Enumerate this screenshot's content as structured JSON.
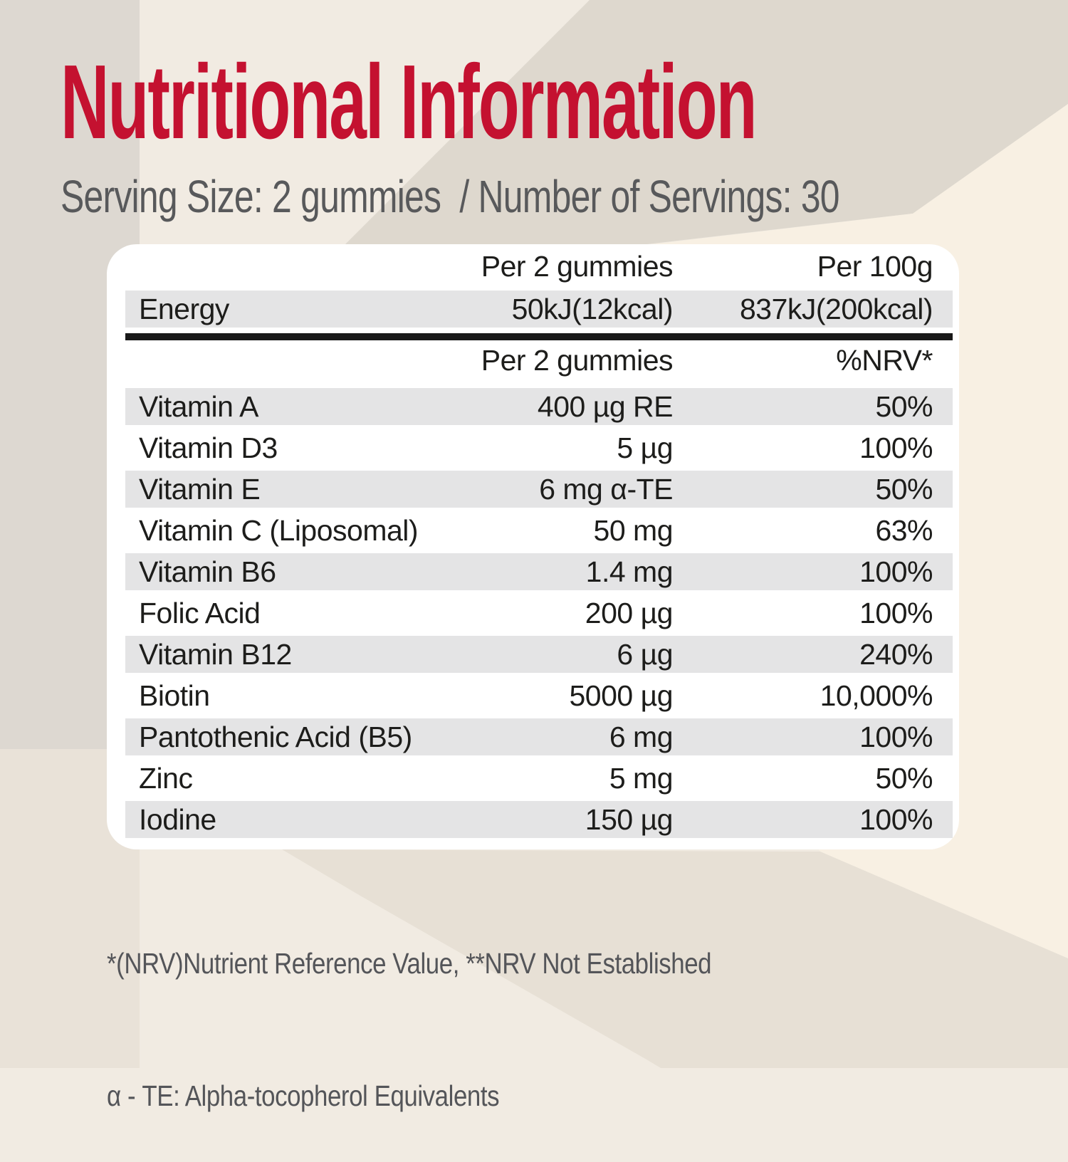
{
  "title": "Nutritional Information",
  "subtitle": "Serving Size: 2 gummies  / Number of Servings: 30",
  "table": {
    "energy_header": {
      "col2": "Per 2 gummies",
      "col3": "Per 100g"
    },
    "energy_row": {
      "label": "Energy",
      "per2": "50kJ(12kcal)",
      "per100": "837kJ(200kcal)"
    },
    "nutrient_header": {
      "col2": "Per 2 gummies",
      "col3": "%NRV*"
    },
    "rows": [
      {
        "label": "Vitamin A",
        "amount": "400 µg RE",
        "nrv": "50%"
      },
      {
        "label": "Vitamin D3",
        "amount": "5 µg",
        "nrv": "100%"
      },
      {
        "label": "Vitamin E",
        "amount": "6 mg α-TE",
        "nrv": "50%"
      },
      {
        "label": "Vitamin C (Liposomal)",
        "amount": "50 mg",
        "nrv": "63%"
      },
      {
        "label": "Vitamin B6",
        "amount": "1.4 mg",
        "nrv": "100%"
      },
      {
        "label": "Folic Acid",
        "amount": "200 µg",
        "nrv": "100%"
      },
      {
        "label": "Vitamin B12",
        "amount": "6 µg",
        "nrv": "240%"
      },
      {
        "label": "Biotin",
        "amount": "5000 µg",
        "nrv": "10,000%"
      },
      {
        "label": "Pantothenic Acid (B5)",
        "amount": "6 mg",
        "nrv": "100%"
      },
      {
        "label": "Zinc",
        "amount": "5 mg",
        "nrv": "50%"
      },
      {
        "label": "Iodine",
        "amount": "150 µg",
        "nrv": "100%"
      }
    ]
  },
  "footnotes": {
    "line1": "*(NRV)Nutrient Reference Value, **NRV Not Established",
    "line2": "α - TE: Alpha-tocopherol Equivalents"
  },
  "colors": {
    "accent_red": "#c41130",
    "subtitle_gray": "#58595b",
    "table_text": "#1d1d1b",
    "stripe_gray": "#e4e4e5",
    "card_white": "#ffffff",
    "bg_cream": "#f1ebe2",
    "bg_left_top": "#ddd8d1",
    "bg_left_bottom": "#e9e2d8",
    "bg_dark_beige": "#ded8ce",
    "bg_warm_light": "#f8f0e3",
    "bg_bottom_band": "#e7e0d5"
  }
}
